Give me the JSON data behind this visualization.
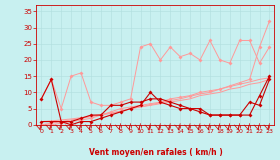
{
  "x": [
    0,
    1,
    2,
    3,
    4,
    5,
    6,
    7,
    8,
    9,
    10,
    11,
    12,
    13,
    14,
    15,
    16,
    17,
    18,
    19,
    20,
    21,
    22,
    23
  ],
  "line_dark1": [
    8,
    14,
    1,
    1,
    2,
    3,
    3,
    6,
    6,
    7,
    7,
    8,
    8,
    7,
    6,
    5,
    5,
    3,
    3,
    3,
    3,
    3,
    9,
    15
  ],
  "line_dark2": [
    1,
    1,
    1,
    0,
    1,
    1,
    2,
    3,
    4,
    5,
    6,
    10,
    7,
    6,
    5,
    5,
    4,
    3,
    3,
    3,
    3,
    7,
    6,
    14
  ],
  "line_light_noisy": [
    8,
    14,
    5,
    15,
    16,
    7,
    6,
    6,
    7,
    8,
    24,
    25,
    20,
    24,
    21,
    22,
    20,
    26,
    20,
    19,
    26,
    26,
    19,
    24
  ],
  "line_light_trend1": [
    0,
    0.5,
    1,
    1.5,
    2,
    2.5,
    3,
    3.5,
    4,
    5,
    5.5,
    6,
    6.5,
    7,
    7.5,
    8,
    9,
    9.5,
    10,
    11,
    11.5,
    12.5,
    13,
    14
  ],
  "line_light_trend2": [
    1,
    1.2,
    1.5,
    1.8,
    2.2,
    2.7,
    3.2,
    3.7,
    4.2,
    5,
    5.5,
    6.2,
    6.8,
    7.5,
    8,
    8.8,
    9.5,
    10,
    11,
    11.8,
    12.5,
    13.2,
    14,
    14.5
  ],
  "line_light_trend3": [
    0,
    0,
    0.5,
    1,
    1.5,
    2,
    3,
    4,
    5,
    5.5,
    6,
    6.5,
    7,
    8,
    8.5,
    9,
    10,
    10.5,
    11,
    12,
    13,
    14,
    24,
    32
  ],
  "bg_color": "#c8f0f0",
  "grid_color": "#b0dede",
  "line_dark_color": "#cc0000",
  "line_light_color": "#ff9999",
  "xlabel": "Vent moyen/en rafales ( km/h )",
  "xlabel_color": "#cc0000",
  "tick_color": "#cc0000",
  "ylim": [
    0,
    37
  ],
  "xlim": [
    -0.5,
    23.5
  ],
  "yticks": [
    0,
    5,
    10,
    15,
    20,
    25,
    30,
    35
  ],
  "marker_size": 2.0,
  "lw_dark": 0.8,
  "lw_light": 0.7
}
